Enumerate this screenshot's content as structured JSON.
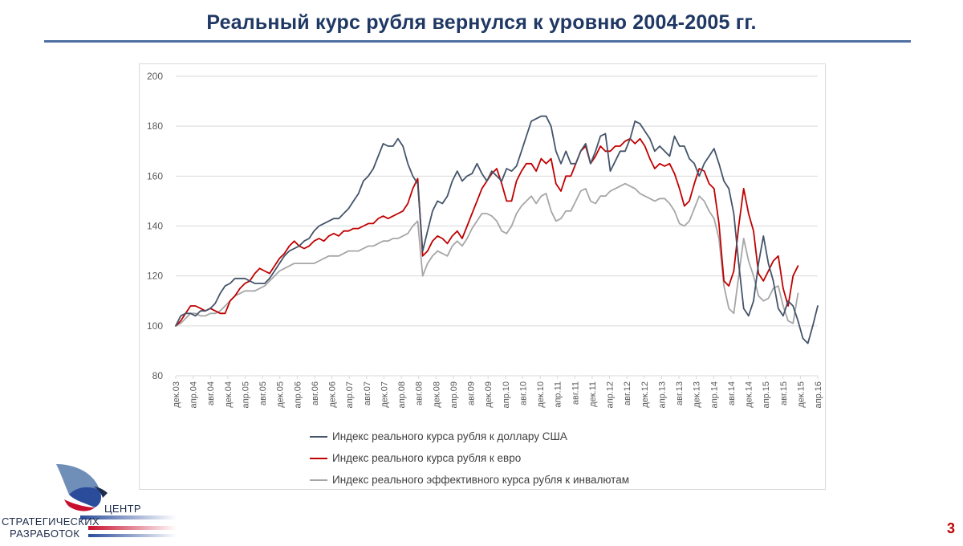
{
  "slide": {
    "title": "Реальный курс рубля вернулся к уровню 2004-2005 гг.",
    "page_number": "3"
  },
  "logo": {
    "line1": "ЦЕНТР",
    "line2": "СТРАТЕГИЧЕСКИХ",
    "line3": "РАЗРАБОТОК"
  },
  "chart_data": {
    "type": "line",
    "title": "",
    "xlabel": "",
    "ylabel": "",
    "ylim": [
      80,
      200
    ],
    "yticks": [
      80,
      100,
      120,
      140,
      160,
      180,
      200
    ],
    "grid": true,
    "legend_position": "bottom",
    "x_tick_labels": [
      "дек.03",
      "апр.04",
      "авг.04",
      "дек.04",
      "апр.05",
      "авг.05",
      "дек.05",
      "апр.06",
      "авг.06",
      "дек.06",
      "апр.07",
      "авг.07",
      "дек.07",
      "апр.08",
      "авг.08",
      "дек.08",
      "апр.09",
      "авг.09",
      "дек.09",
      "апр.10",
      "авг.10",
      "дек.10",
      "апр.11",
      "авг.11",
      "дек.11",
      "апр.12",
      "авг.12",
      "дек.12",
      "апр.13",
      "авг.13",
      "дек.13",
      "апр.14",
      "авг.14",
      "дек.14",
      "апр.15",
      "авг.15",
      "дек.15",
      "апр.16"
    ],
    "series": [
      {
        "name": "Индекс реального курса рубля к доллару США",
        "color": "#44546a",
        "values": [
          100,
          104,
          105,
          105,
          104,
          106,
          106,
          107,
          109,
          113,
          116,
          117,
          119,
          119,
          119,
          118,
          117,
          117,
          117,
          119,
          122,
          125,
          128,
          130,
          131,
          132,
          134,
          135,
          138,
          140,
          141,
          142,
          143,
          143,
          145,
          147,
          150,
          153,
          158,
          160,
          163,
          168,
          173,
          172,
          172,
          175,
          172,
          165,
          160,
          157,
          130,
          138,
          146,
          150,
          149,
          152,
          158,
          162,
          158,
          160,
          161,
          165,
          161,
          158,
          162,
          160,
          158,
          163,
          162,
          164,
          170,
          176,
          182,
          183,
          184,
          184,
          180,
          170,
          165,
          170,
          165,
          165,
          170,
          173,
          165,
          170,
          176,
          177,
          162,
          166,
          170,
          170,
          175,
          182,
          181,
          178,
          175,
          170,
          172,
          170,
          168,
          176,
          172,
          172,
          167,
          165,
          160,
          165,
          168,
          171,
          165,
          158,
          155,
          145,
          125,
          107,
          104,
          110,
          125,
          136,
          125,
          118,
          107,
          104,
          110,
          108,
          102,
          95,
          93,
          100,
          108
        ]
      },
      {
        "name": "Индекс реального курса рубля к евро",
        "color": "#c00000",
        "values": [
          100,
          102,
          105,
          108,
          108,
          107,
          106,
          107,
          106,
          105,
          105,
          110,
          112,
          115,
          117,
          118,
          121,
          123,
          122,
          121,
          124,
          127,
          129,
          132,
          134,
          132,
          131,
          132,
          134,
          135,
          134,
          136,
          137,
          136,
          138,
          138,
          139,
          139,
          140,
          141,
          141,
          143,
          144,
          143,
          144,
          145,
          146,
          149,
          155,
          159,
          128,
          130,
          134,
          136,
          135,
          133,
          136,
          138,
          135,
          140,
          145,
          150,
          155,
          158,
          161,
          163,
          157,
          150,
          150,
          158,
          162,
          165,
          165,
          162,
          167,
          165,
          167,
          157,
          154,
          160,
          160,
          165,
          170,
          172,
          165,
          168,
          172,
          170,
          170,
          172,
          172,
          174,
          175,
          173,
          175,
          172,
          167,
          163,
          165,
          164,
          165,
          161,
          155,
          148,
          150,
          157,
          163,
          162,
          157,
          155,
          141,
          118,
          116,
          122,
          140,
          155,
          145,
          138,
          121,
          118,
          122,
          126,
          128,
          115,
          108,
          120,
          124
        ]
      },
      {
        "name": "Индекс реального эффективного курса рубля к инвалютам",
        "color": "#a6a6a6",
        "values": [
          100,
          101,
          103,
          105,
          105,
          104,
          104,
          105,
          105,
          106,
          108,
          110,
          112,
          113,
          114,
          114,
          114,
          115,
          116,
          118,
          120,
          122,
          123,
          124,
          125,
          125,
          125,
          125,
          125,
          126,
          127,
          128,
          128,
          128,
          129,
          130,
          130,
          130,
          131,
          132,
          132,
          133,
          134,
          134,
          135,
          135,
          136,
          137,
          140,
          142,
          120,
          125,
          128,
          130,
          129,
          128,
          132,
          134,
          132,
          135,
          139,
          142,
          145,
          145,
          144,
          142,
          138,
          137,
          140,
          145,
          148,
          150,
          152,
          149,
          152,
          153,
          146,
          142,
          143,
          146,
          146,
          150,
          154,
          155,
          150,
          149,
          152,
          152,
          154,
          155,
          156,
          157,
          156,
          155,
          153,
          152,
          151,
          150,
          151,
          151,
          149,
          146,
          141,
          140,
          142,
          147,
          152,
          150,
          146,
          143,
          135,
          116,
          107,
          105,
          120,
          135,
          126,
          120,
          112,
          110,
          111,
          115,
          116,
          108,
          102,
          101,
          113
        ]
      }
    ]
  }
}
